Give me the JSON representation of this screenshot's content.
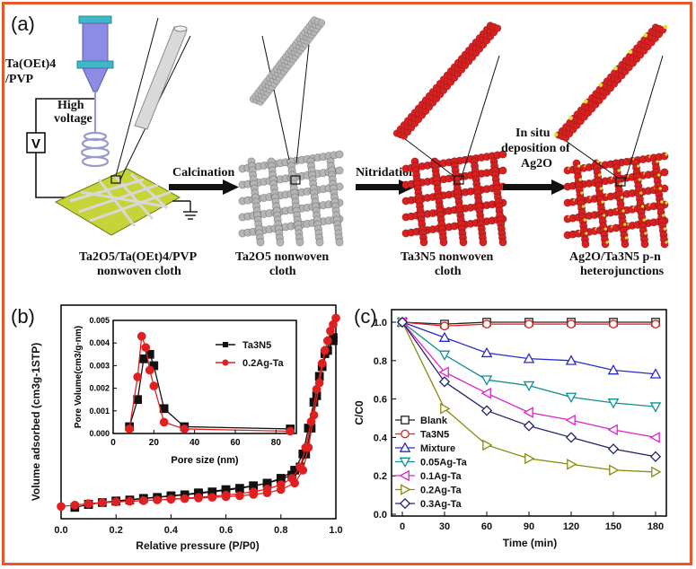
{
  "panel_a": {
    "label": "(a)",
    "precursor": "Ta(OEt)4 /PVP",
    "precursor_line1": "Ta(OEt)4",
    "precursor_line2": "/PVP",
    "voltage_line1": "High",
    "voltage_line2": "voltage",
    "voltage_symbol": "V",
    "step1": "Calcination",
    "step2": "Nitridation",
    "step3_line1": "In situ",
    "step3_line2": "deposition of",
    "step3_line3": "Ag2O",
    "cap1_line1": "Ta2O5/Ta(OEt)4/PVP",
    "cap1_line2": "nonwoven cloth",
    "cap2_line1": "Ta2O5 nonwoven",
    "cap2_line2": "cloth",
    "cap3_line1": "Ta3N5 nonwoven",
    "cap3_line2": "cloth",
    "cap4_line1": "Ag2O/Ta3N5 p-n",
    "cap4_line2": "heterojunctions",
    "colors": {
      "gray": "#b5b5b5",
      "red": "#d92020",
      "pad": "#c6d43a",
      "ag": "#d4e62a",
      "needle": "#7f7fdc",
      "cap": "#3fb7c9"
    }
  },
  "chart_data": [
    {
      "panel": "(b)",
      "type": "line",
      "xlabel": "Relative pressure (P/P0)",
      "ylabel": "Volume adsorbed (cm3g-1STP)",
      "xlim": [
        0.0,
        1.0
      ],
      "xticks": [
        "0.0",
        "0.2",
        "0.4",
        "0.6",
        "0.8",
        "1.0"
      ],
      "series": [
        {
          "name": "Ta3N5",
          "color": "#111111",
          "marker": "square",
          "x": [
            0.05,
            0.1,
            0.15,
            0.2,
            0.25,
            0.3,
            0.35,
            0.4,
            0.45,
            0.5,
            0.55,
            0.6,
            0.65,
            0.7,
            0.75,
            0.8,
            0.85,
            0.88,
            0.9,
            0.92,
            0.94,
            0.96,
            0.98,
            0.99,
            0.99,
            0.97,
            0.95,
            0.93,
            0.91,
            0.89,
            0.87,
            0.84,
            0.8,
            0.75,
            0.7,
            0.6,
            0.5,
            0.4,
            0.3,
            0.2,
            0.1
          ],
          "y": [
            3.5,
            4.4,
            5.0,
            5.4,
            5.8,
            6.2,
            6.6,
            7.0,
            7.4,
            7.8,
            8.3,
            8.8,
            9.4,
            10.1,
            11.0,
            12.5,
            15.0,
            20.0,
            28.0,
            36.0,
            44.0,
            51.0,
            55.0,
            56.0,
            55.0,
            52.0,
            47.0,
            38.0,
            28.0,
            20.0,
            16.0,
            13.5,
            12.2,
            11.0,
            10.2,
            9.0,
            8.0,
            7.1,
            6.3,
            5.5,
            4.5
          ]
        },
        {
          "name": "0.2Ag-Ta",
          "color": "#e02020",
          "marker": "circle",
          "x": [
            0.0,
            0.05,
            0.1,
            0.15,
            0.2,
            0.25,
            0.3,
            0.35,
            0.4,
            0.45,
            0.5,
            0.55,
            0.6,
            0.65,
            0.7,
            0.75,
            0.8,
            0.85,
            0.88,
            0.9,
            0.92,
            0.94,
            0.96,
            0.98,
            1.0,
            0.99,
            0.97,
            0.95,
            0.93,
            0.91,
            0.89,
            0.87,
            0.84,
            0.8,
            0.75,
            0.7,
            0.6,
            0.5,
            0.4,
            0.3,
            0.2,
            0.1
          ],
          "y": [
            3.8,
            4.2,
            4.7,
            5.0,
            5.2,
            5.4,
            5.6,
            5.8,
            6.0,
            6.2,
            6.4,
            6.6,
            6.8,
            7.1,
            7.5,
            8.0,
            9.0,
            11.0,
            15.0,
            22.0,
            32.0,
            42.0,
            52.0,
            58.0,
            62.0,
            60.0,
            55.0,
            48.0,
            40.0,
            30.0,
            22.0,
            16.0,
            12.5,
            10.5,
            9.2,
            8.3,
            7.3,
            6.6,
            6.1,
            5.6,
            5.2,
            4.6
          ]
        }
      ],
      "ylim": [
        0,
        66
      ],
      "inset": {
        "type": "line",
        "xlabel": "Pore size (nm)",
        "ylabel": "Pore Volume(cm3/g·nm)",
        "xlim": [
          0,
          90
        ],
        "ylim": [
          0,
          0.005
        ],
        "xticks": [
          "0",
          "20",
          "40",
          "60",
          "80"
        ],
        "yticks": [
          "0.000",
          "0.001",
          "0.002",
          "0.003",
          "0.004",
          "0.005"
        ],
        "series": [
          {
            "name": "Ta3N5",
            "color": "#111111",
            "marker": "square",
            "x": [
              8,
              12,
              15,
              18,
              20,
              25,
              35,
              87
            ],
            "y": [
              0.0003,
              0.0015,
              0.0033,
              0.0035,
              0.003,
              0.0011,
              0.0003,
              0.0002
            ]
          },
          {
            "name": "0.2Ag-Ta",
            "color": "#e02020",
            "marker": "circle",
            "x": [
              8,
              12,
              14,
              16,
              18,
              20,
              25,
              35,
              87
            ],
            "y": [
              0.0002,
              0.0025,
              0.0043,
              0.0038,
              0.0028,
              0.0021,
              0.0005,
              0.0002,
              0.0001
            ]
          }
        ]
      }
    },
    {
      "panel": "(c)",
      "type": "line",
      "xlabel": "Time (min)",
      "ylabel": "C/C0",
      "xlim": [
        0,
        180
      ],
      "ylim": [
        0.0,
        1.0
      ],
      "xticks": [
        "0",
        "30",
        "60",
        "90",
        "120",
        "150",
        "180"
      ],
      "yticks": [
        "0.0",
        "0.2",
        "0.4",
        "0.6",
        "0.8",
        "1.0"
      ],
      "categories": [
        0,
        30,
        60,
        90,
        120,
        150,
        180
      ],
      "series": [
        {
          "name": "Blank",
          "color": "#222222",
          "marker": "square",
          "values": [
            1.0,
            0.99,
            1.0,
            1.0,
            1.0,
            1.0,
            1.0
          ]
        },
        {
          "name": "Ta3N5",
          "color": "#e02020",
          "marker": "circle",
          "values": [
            1.0,
            0.98,
            0.99,
            0.99,
            0.99,
            0.99,
            0.99
          ]
        },
        {
          "name": "Mixture",
          "color": "#2a2acc",
          "marker": "triangle-up",
          "values": [
            1.0,
            0.92,
            0.84,
            0.81,
            0.8,
            0.75,
            0.73
          ]
        },
        {
          "name": "0.05Ag-Ta",
          "color": "#0f8f8f",
          "marker": "triangle-down",
          "values": [
            1.0,
            0.83,
            0.7,
            0.67,
            0.61,
            0.58,
            0.56
          ]
        },
        {
          "name": "0.1Ag-Ta",
          "color": "#e020d0",
          "marker": "triangle-left",
          "values": [
            1.0,
            0.74,
            0.63,
            0.53,
            0.49,
            0.44,
            0.4
          ]
        },
        {
          "name": "0.2Ag-Ta",
          "color": "#8a8a10",
          "marker": "triangle-right",
          "values": [
            1.0,
            0.55,
            0.36,
            0.29,
            0.26,
            0.23,
            0.22
          ]
        },
        {
          "name": "0.3Ag-Ta",
          "color": "#23236b",
          "marker": "diamond",
          "values": [
            1.0,
            0.69,
            0.54,
            0.46,
            0.4,
            0.34,
            0.3
          ]
        }
      ]
    }
  ]
}
